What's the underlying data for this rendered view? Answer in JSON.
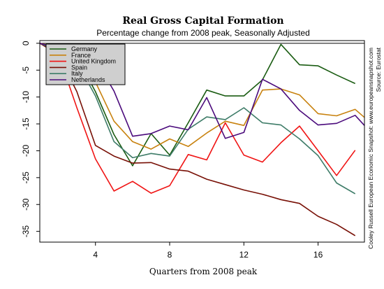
{
  "chart_data": {
    "type": "line",
    "title": "Real Gross Capital Formation",
    "subtitle": "Percentage change from 2008 peak, Seasonally Adjusted",
    "xlabel": "Quarters from 2008 peak",
    "ylabel": "",
    "xlim": [
      1,
      18.5
    ],
    "ylim": [
      -37,
      0.5
    ],
    "xticks": [
      4,
      8,
      12,
      16
    ],
    "yticks": [
      0,
      -5,
      -10,
      -15,
      -20,
      -25,
      -30,
      -35
    ],
    "legend_position": "top-left",
    "x": [
      1,
      2,
      3,
      4,
      5,
      6,
      7,
      8,
      9,
      10,
      11,
      12,
      13,
      14,
      15,
      16,
      17,
      18,
      18.5
    ],
    "series": [
      {
        "name": "Germany",
        "color": "#1a5c12",
        "values": [
          0,
          -1.2,
          -2.5,
          -9.0,
          -17.0,
          -22.8,
          -16.8,
          -20.8,
          -14.8,
          -8.7,
          -9.8,
          -9.8,
          -6.8,
          -0.2,
          -4.0,
          -4.2,
          -5.9,
          -7.5,
          null
        ]
      },
      {
        "name": "France",
        "color": "#c8820f",
        "values": [
          0,
          -0.8,
          -2.0,
          -7.2,
          -14.5,
          -18.3,
          -19.7,
          -17.8,
          -19.2,
          -16.7,
          -14.5,
          -15.3,
          -8.7,
          -8.5,
          -9.6,
          -13.1,
          -13.5,
          -12.3,
          -13.8
        ]
      },
      {
        "name": "United Kingdom",
        "color": "#f01414",
        "values": [
          0,
          -2.0,
          -12.0,
          -21.5,
          -27.5,
          -25.7,
          -27.9,
          -26.5,
          -20.7,
          -21.7,
          -14.8,
          -20.8,
          -22.1,
          -18.5,
          -15.4,
          -20.0,
          -24.6,
          -19.9,
          null
        ]
      },
      {
        "name": "Spain",
        "color": "#781006",
        "values": [
          0,
          -2.1,
          -9.0,
          -19.0,
          -21.0,
          -22.3,
          -22.2,
          -23.4,
          -23.8,
          -25.3,
          -26.3,
          -27.3,
          -28.1,
          -29.1,
          -29.8,
          -32.2,
          -33.7,
          -35.8,
          null
        ]
      },
      {
        "name": "Italy",
        "color": "#3e7c68",
        "values": [
          0,
          -1.5,
          -3.5,
          -9.8,
          -18.3,
          -21.3,
          -20.5,
          -21.0,
          -16.0,
          -13.7,
          -14.2,
          -12.0,
          -14.8,
          -15.2,
          -17.8,
          -20.9,
          -26.0,
          -28.0,
          null
        ]
      },
      {
        "name": "Netherlands",
        "color": "#4b0b7c",
        "values": [
          0,
          -1.0,
          -2.5,
          -3.0,
          -8.9,
          -17.3,
          -16.8,
          -15.4,
          -16.1,
          -10.1,
          -17.7,
          -16.6,
          -6.7,
          -8.5,
          -12.5,
          -15.2,
          -14.9,
          -13.4,
          -15.3
        ]
      }
    ],
    "credit_lines": [
      "Cooley Russell European Economic Snapshot: www.europeansnapshot.com",
      "Source: Eurostat"
    ]
  }
}
